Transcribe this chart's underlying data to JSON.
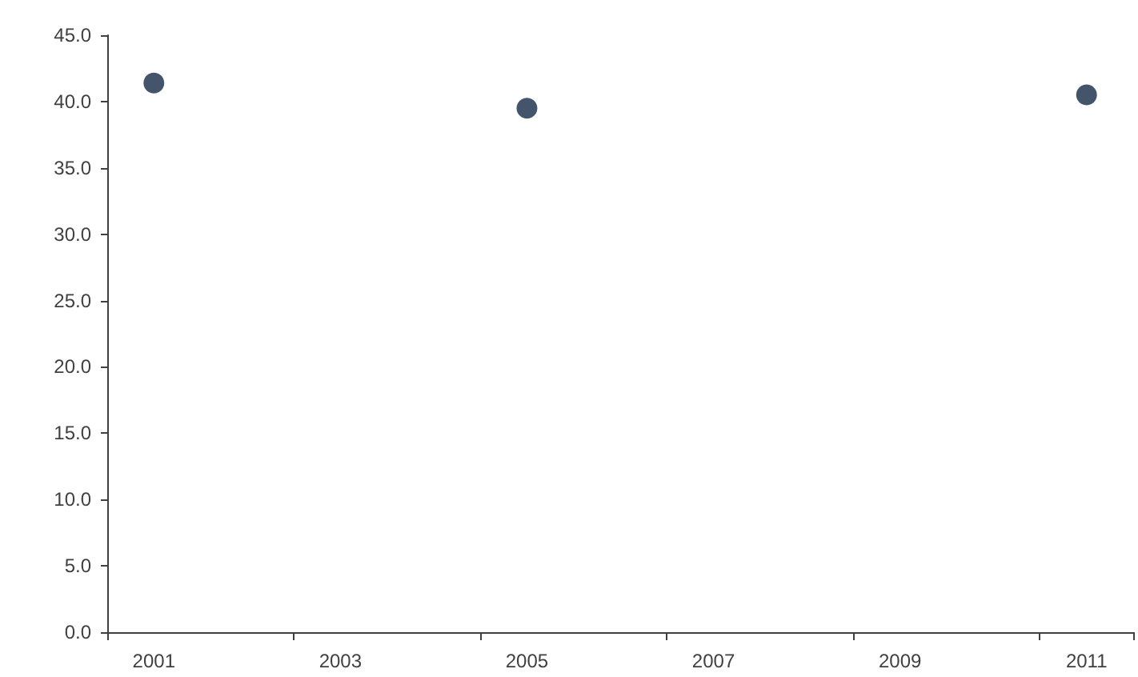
{
  "chart_data": {
    "type": "scatter",
    "categories": [
      "2001",
      null,
      "2003",
      null,
      "2005",
      null,
      "2007",
      null,
      "2009",
      null,
      "2011"
    ],
    "series": [
      {
        "color": "#44546a",
        "values": [
          41.4,
          null,
          null,
          null,
          39.5,
          null,
          null,
          null,
          null,
          null,
          40.5
        ]
      }
    ],
    "ylim": [
      0,
      45
    ],
    "yticks": [
      {
        "value": 0,
        "label": "0.0"
      },
      {
        "value": 5,
        "label": "5.0"
      },
      {
        "value": 10,
        "label": "10.0"
      },
      {
        "value": 15,
        "label": "15.0"
      },
      {
        "value": 20,
        "label": "20.0"
      },
      {
        "value": 25,
        "label": "25.0"
      },
      {
        "value": 30,
        "label": "30.0"
      },
      {
        "value": 35,
        "label": "35.0"
      },
      {
        "value": 40,
        "label": "40.0"
      },
      {
        "value": 45,
        "label": "45.0"
      }
    ],
    "grid": false,
    "marker": "circle"
  }
}
